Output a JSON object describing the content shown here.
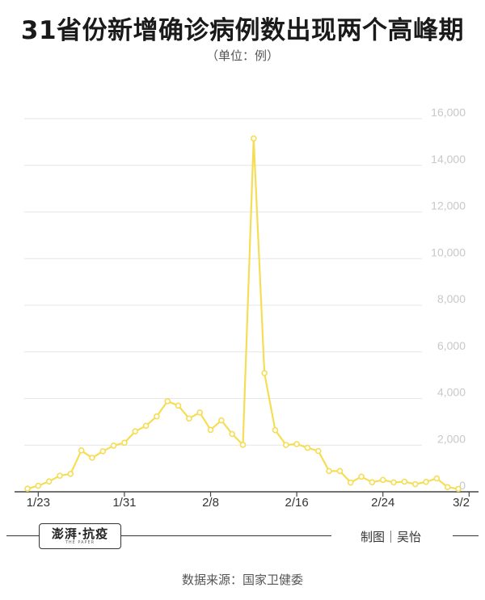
{
  "title": "31省份新增确诊病例数出现两个高峰期",
  "unit_label": "（单位：例）",
  "footer": {
    "logo_text": "澎湃·抗疫",
    "logo_subtext": "THE PAPER",
    "credit": "制图｜吴怡",
    "source": "数据来源：国家卫健委"
  },
  "colors": {
    "line": "#f5dd55",
    "grid": "#e6e6e6",
    "tick_text": "#c8c8c8",
    "axis_text": "#333333"
  },
  "chart_data": {
    "type": "line",
    "title": "31省份新增确诊病例数出现两个高峰期",
    "x_start": "1/22",
    "x_tick_labels": [
      "1/23",
      "1/31",
      "2/8",
      "2/16",
      "2/24",
      "3/2"
    ],
    "y_ticks": [
      "0",
      "2,000",
      "4,000",
      "6,000",
      "8,000",
      "10,000",
      "12,000",
      "14,000",
      "16,000"
    ],
    "ylim": [
      0,
      16000
    ],
    "grid": true,
    "y_axis_position": "right",
    "series": [
      {
        "values": [
          131,
          259,
          444,
          688,
          769,
          1771,
          1459,
          1737,
          1982,
          2102,
          2590,
          2829,
          3235,
          3887,
          3694,
          3143,
          3399,
          2656,
          3062,
          2478,
          2015,
          15152,
          5090,
          2641,
          2009,
          2048,
          1886,
          1749,
          891,
          889,
          397,
          648,
          409,
          508,
          406,
          433,
          327,
          427,
          573,
          202,
          125
        ]
      }
    ]
  }
}
